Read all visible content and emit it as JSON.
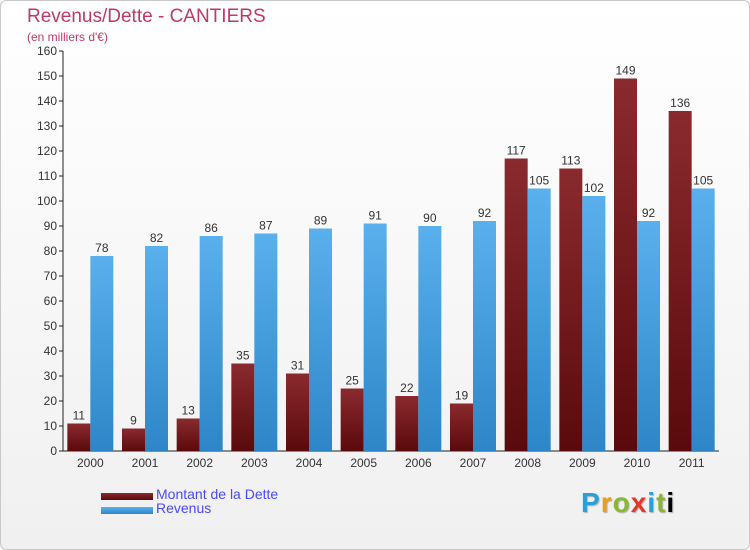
{
  "chart_data": {
    "type": "bar",
    "title": "Revenus/Dette - CANTIERS",
    "subtitle": "(en milliers d'€)",
    "categories": [
      "2000",
      "2001",
      "2002",
      "2003",
      "2004",
      "2005",
      "2006",
      "2007",
      "2008",
      "2009",
      "2010",
      "2011"
    ],
    "series": [
      {
        "name": "Montant de la Dette",
        "color": "#7a1418",
        "values": [
          11,
          9,
          13,
          35,
          31,
          25,
          22,
          19,
          117,
          113,
          149,
          136
        ]
      },
      {
        "name": "Revenus",
        "color": "#3e9ee0",
        "values": [
          78,
          82,
          86,
          87,
          89,
          91,
          90,
          92,
          105,
          102,
          92,
          105
        ]
      }
    ],
    "ylim": [
      0,
      160
    ],
    "ytick_step": 10,
    "grid": false,
    "legend": "bottom-left"
  },
  "logo": {
    "letters": [
      "P",
      "r",
      "o",
      "x",
      "i",
      "t",
      "i"
    ]
  }
}
